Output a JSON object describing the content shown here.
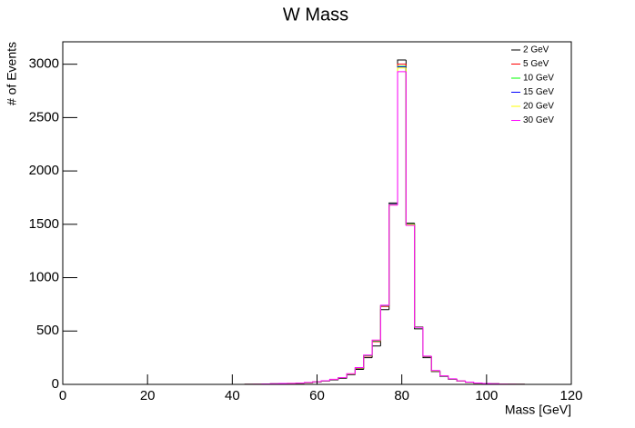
{
  "chart_data": {
    "type": "histogram",
    "title": "W Mass",
    "x_label": "Mass [GeV]",
    "y_label": "# of Events",
    "bins": [
      1,
      3,
      5,
      7,
      9,
      11,
      13,
      15,
      17,
      19,
      21,
      23,
      25,
      27,
      29,
      31,
      33,
      35,
      37,
      39,
      41,
      43,
      45,
      47,
      49,
      51,
      53,
      55,
      57,
      59,
      61,
      63,
      65,
      67,
      69,
      71,
      73,
      75,
      77,
      79,
      81,
      83,
      85,
      87,
      89,
      91,
      93,
      95,
      97,
      99,
      101,
      103,
      105,
      107,
      109,
      111,
      113,
      115,
      117,
      119
    ],
    "series": [
      {
        "name": "2 GeV",
        "color": "#000000",
        "values": [
          0,
          0,
          0,
          0,
          0,
          0,
          0,
          0,
          0,
          0,
          0,
          0,
          0,
          0,
          0,
          0,
          0,
          0,
          0,
          0,
          0,
          1,
          2,
          3,
          4,
          6,
          8,
          10,
          15,
          22,
          30,
          42,
          55,
          90,
          140,
          250,
          360,
          700,
          1700,
          3040,
          1510,
          520,
          250,
          120,
          75,
          48,
          30,
          20,
          12,
          8,
          5,
          3,
          2,
          1,
          0,
          0,
          0,
          0,
          0
        ]
      },
      {
        "name": "5 GeV",
        "color": "#ff0000",
        "values": [
          0,
          0,
          0,
          0,
          0,
          0,
          0,
          0,
          0,
          0,
          0,
          0,
          0,
          0,
          0,
          0,
          0,
          0,
          0,
          0,
          0,
          1,
          2,
          3,
          5,
          6,
          9,
          11,
          16,
          23,
          32,
          45,
          60,
          95,
          150,
          265,
          400,
          730,
          1690,
          3000,
          1500,
          540,
          260,
          125,
          78,
          50,
          31,
          20,
          12,
          8,
          5,
          3,
          2,
          1,
          0,
          0,
          0,
          0,
          0
        ]
      },
      {
        "name": "10 GeV",
        "color": "#00ff00",
        "values": [
          0,
          0,
          0,
          0,
          0,
          0,
          0,
          0,
          0,
          0,
          0,
          0,
          0,
          0,
          0,
          0,
          0,
          0,
          0,
          0,
          0,
          1,
          2,
          3,
          5,
          7,
          9,
          11,
          16,
          23,
          32,
          46,
          60,
          96,
          152,
          268,
          405,
          735,
          1690,
          2980,
          1500,
          540,
          262,
          126,
          78,
          50,
          31,
          20,
          12,
          8,
          5,
          3,
          2,
          1,
          0,
          0,
          0,
          0,
          0
        ]
      },
      {
        "name": "15 GeV",
        "color": "#0000ff",
        "values": [
          0,
          0,
          0,
          0,
          0,
          0,
          0,
          0,
          0,
          0,
          0,
          0,
          0,
          0,
          0,
          0,
          0,
          0,
          0,
          0,
          0,
          1,
          2,
          4,
          5,
          7,
          9,
          12,
          17,
          24,
          33,
          46,
          61,
          97,
          154,
          270,
          410,
          738,
          1690,
          2975,
          1495,
          538,
          262,
          127,
          79,
          50,
          32,
          21,
          13,
          8,
          5,
          3,
          2,
          1,
          0,
          0,
          0,
          0,
          0
        ]
      },
      {
        "name": "20 GeV",
        "color": "#ffff00",
        "values": [
          0,
          0,
          0,
          0,
          0,
          0,
          0,
          0,
          0,
          0,
          0,
          0,
          0,
          0,
          0,
          0,
          0,
          0,
          0,
          0,
          0,
          1,
          2,
          4,
          5,
          7,
          10,
          12,
          17,
          24,
          33,
          47,
          62,
          98,
          155,
          272,
          412,
          740,
          1685,
          2965,
          1495,
          536,
          263,
          128,
          80,
          51,
          32,
          21,
          13,
          8,
          5,
          3,
          2,
          1,
          0,
          0,
          0,
          0,
          0
        ]
      },
      {
        "name": "30 GeV",
        "color": "#ff00ff",
        "values": [
          0,
          0,
          0,
          0,
          0,
          0,
          0,
          0,
          0,
          0,
          0,
          0,
          0,
          0,
          0,
          0,
          0,
          0,
          0,
          0,
          0,
          1,
          2,
          4,
          6,
          8,
          10,
          12,
          18,
          25,
          34,
          48,
          63,
          100,
          158,
          275,
          415,
          742,
          1680,
          2930,
          1490,
          535,
          265,
          130,
          80,
          52,
          33,
          21,
          13,
          9,
          6,
          3,
          2,
          1,
          0,
          0,
          0,
          0,
          0
        ]
      }
    ],
    "xlim": [
      0,
      120
    ],
    "xticks": [
      0,
      20,
      40,
      60,
      80,
      100,
      120
    ],
    "ylim": [
      0,
      3210
    ],
    "yticks": [
      0,
      500,
      1000,
      1500,
      2000,
      2500,
      3000
    ],
    "legend": "upper right"
  }
}
